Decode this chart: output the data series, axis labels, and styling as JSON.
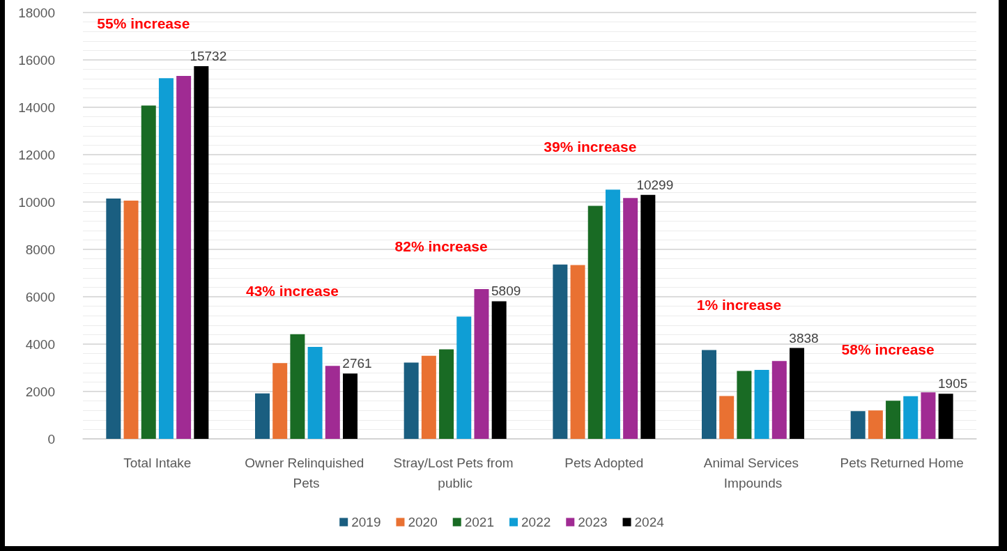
{
  "chart_data": {
    "type": "bar",
    "categories": [
      "Total Intake",
      "Owner Relinquished Pets",
      "Stray/Lost Pets from public",
      "Pets Adopted",
      "Animal Services Impounds",
      "Pets Returned Home"
    ],
    "series": [
      {
        "name": "2019",
        "color": "#1a5e80",
        "values": [
          10150,
          1920,
          3220,
          7360,
          3750,
          1170
        ]
      },
      {
        "name": "2020",
        "color": "#e97132",
        "values": [
          10060,
          3200,
          3510,
          7340,
          1810,
          1200
        ]
      },
      {
        "name": "2021",
        "color": "#196b24",
        "values": [
          14070,
          4420,
          3780,
          9840,
          2870,
          1610
        ]
      },
      {
        "name": "2022",
        "color": "#0f9ed5",
        "values": [
          15230,
          3880,
          5160,
          10520,
          2910,
          1800
        ]
      },
      {
        "name": "2023",
        "color": "#a02b93",
        "values": [
          15320,
          3080,
          6320,
          10170,
          3290,
          1960
        ]
      },
      {
        "name": "2024",
        "color": "#000000",
        "values": [
          15732,
          2761,
          5809,
          10299,
          3838,
          1905
        ],
        "value_labels": [
          "15732",
          "2761",
          "5809",
          "10299",
          "3838",
          "1905"
        ]
      }
    ],
    "ylim": [
      0,
      18000
    ],
    "yticks": [
      0,
      2000,
      4000,
      6000,
      8000,
      10000,
      12000,
      14000,
      16000,
      18000
    ],
    "grid": "y",
    "legend": "bottom",
    "annotations": [
      "55% increase",
      "43% increase",
      "82% increase",
      "39% increase",
      "1% increase",
      "58% increase"
    ]
  }
}
